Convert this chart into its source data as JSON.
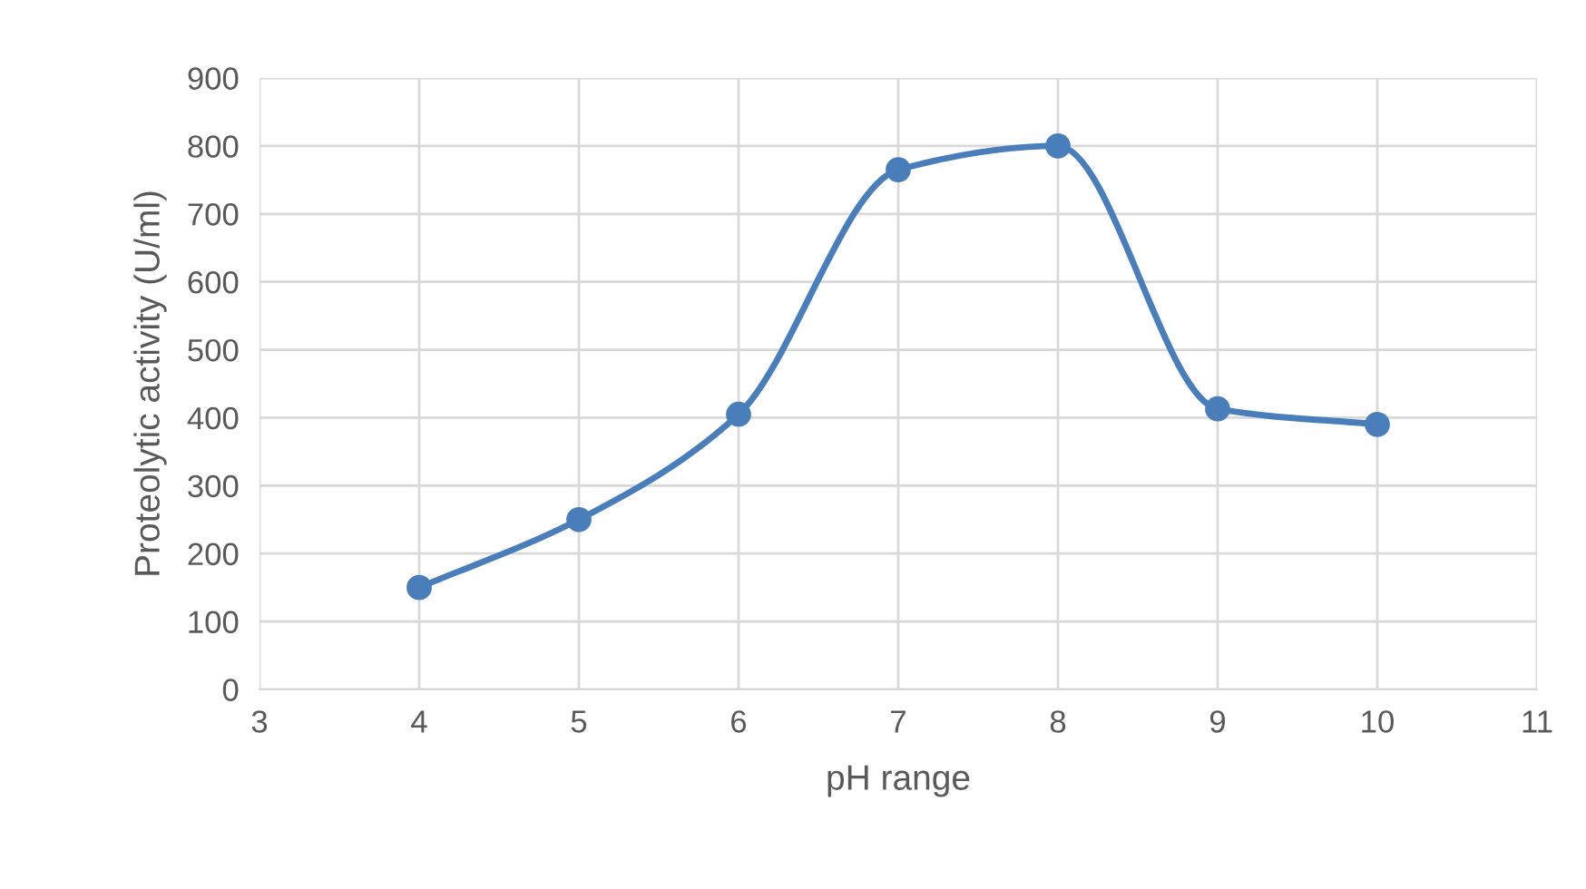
{
  "chart_data": {
    "type": "line",
    "xlabel": "pH range",
    "ylabel": "Proteolytic activity (U/ml)",
    "x": [
      4,
      5,
      6,
      7,
      8,
      9,
      10
    ],
    "series": [
      {
        "color": "#4a7ebb",
        "values": [
          150,
          250,
          405,
          765,
          800,
          413,
          390
        ]
      }
    ],
    "xlim": [
      3,
      11
    ],
    "xticks": [
      3,
      4,
      5,
      6,
      7,
      8,
      9,
      10,
      11
    ],
    "ylim": [
      0,
      900
    ],
    "yticks": [
      0,
      100,
      200,
      300,
      400,
      500,
      600,
      700,
      800,
      900
    ],
    "grid": true,
    "marker": "circle",
    "line_style": "solid"
  }
}
